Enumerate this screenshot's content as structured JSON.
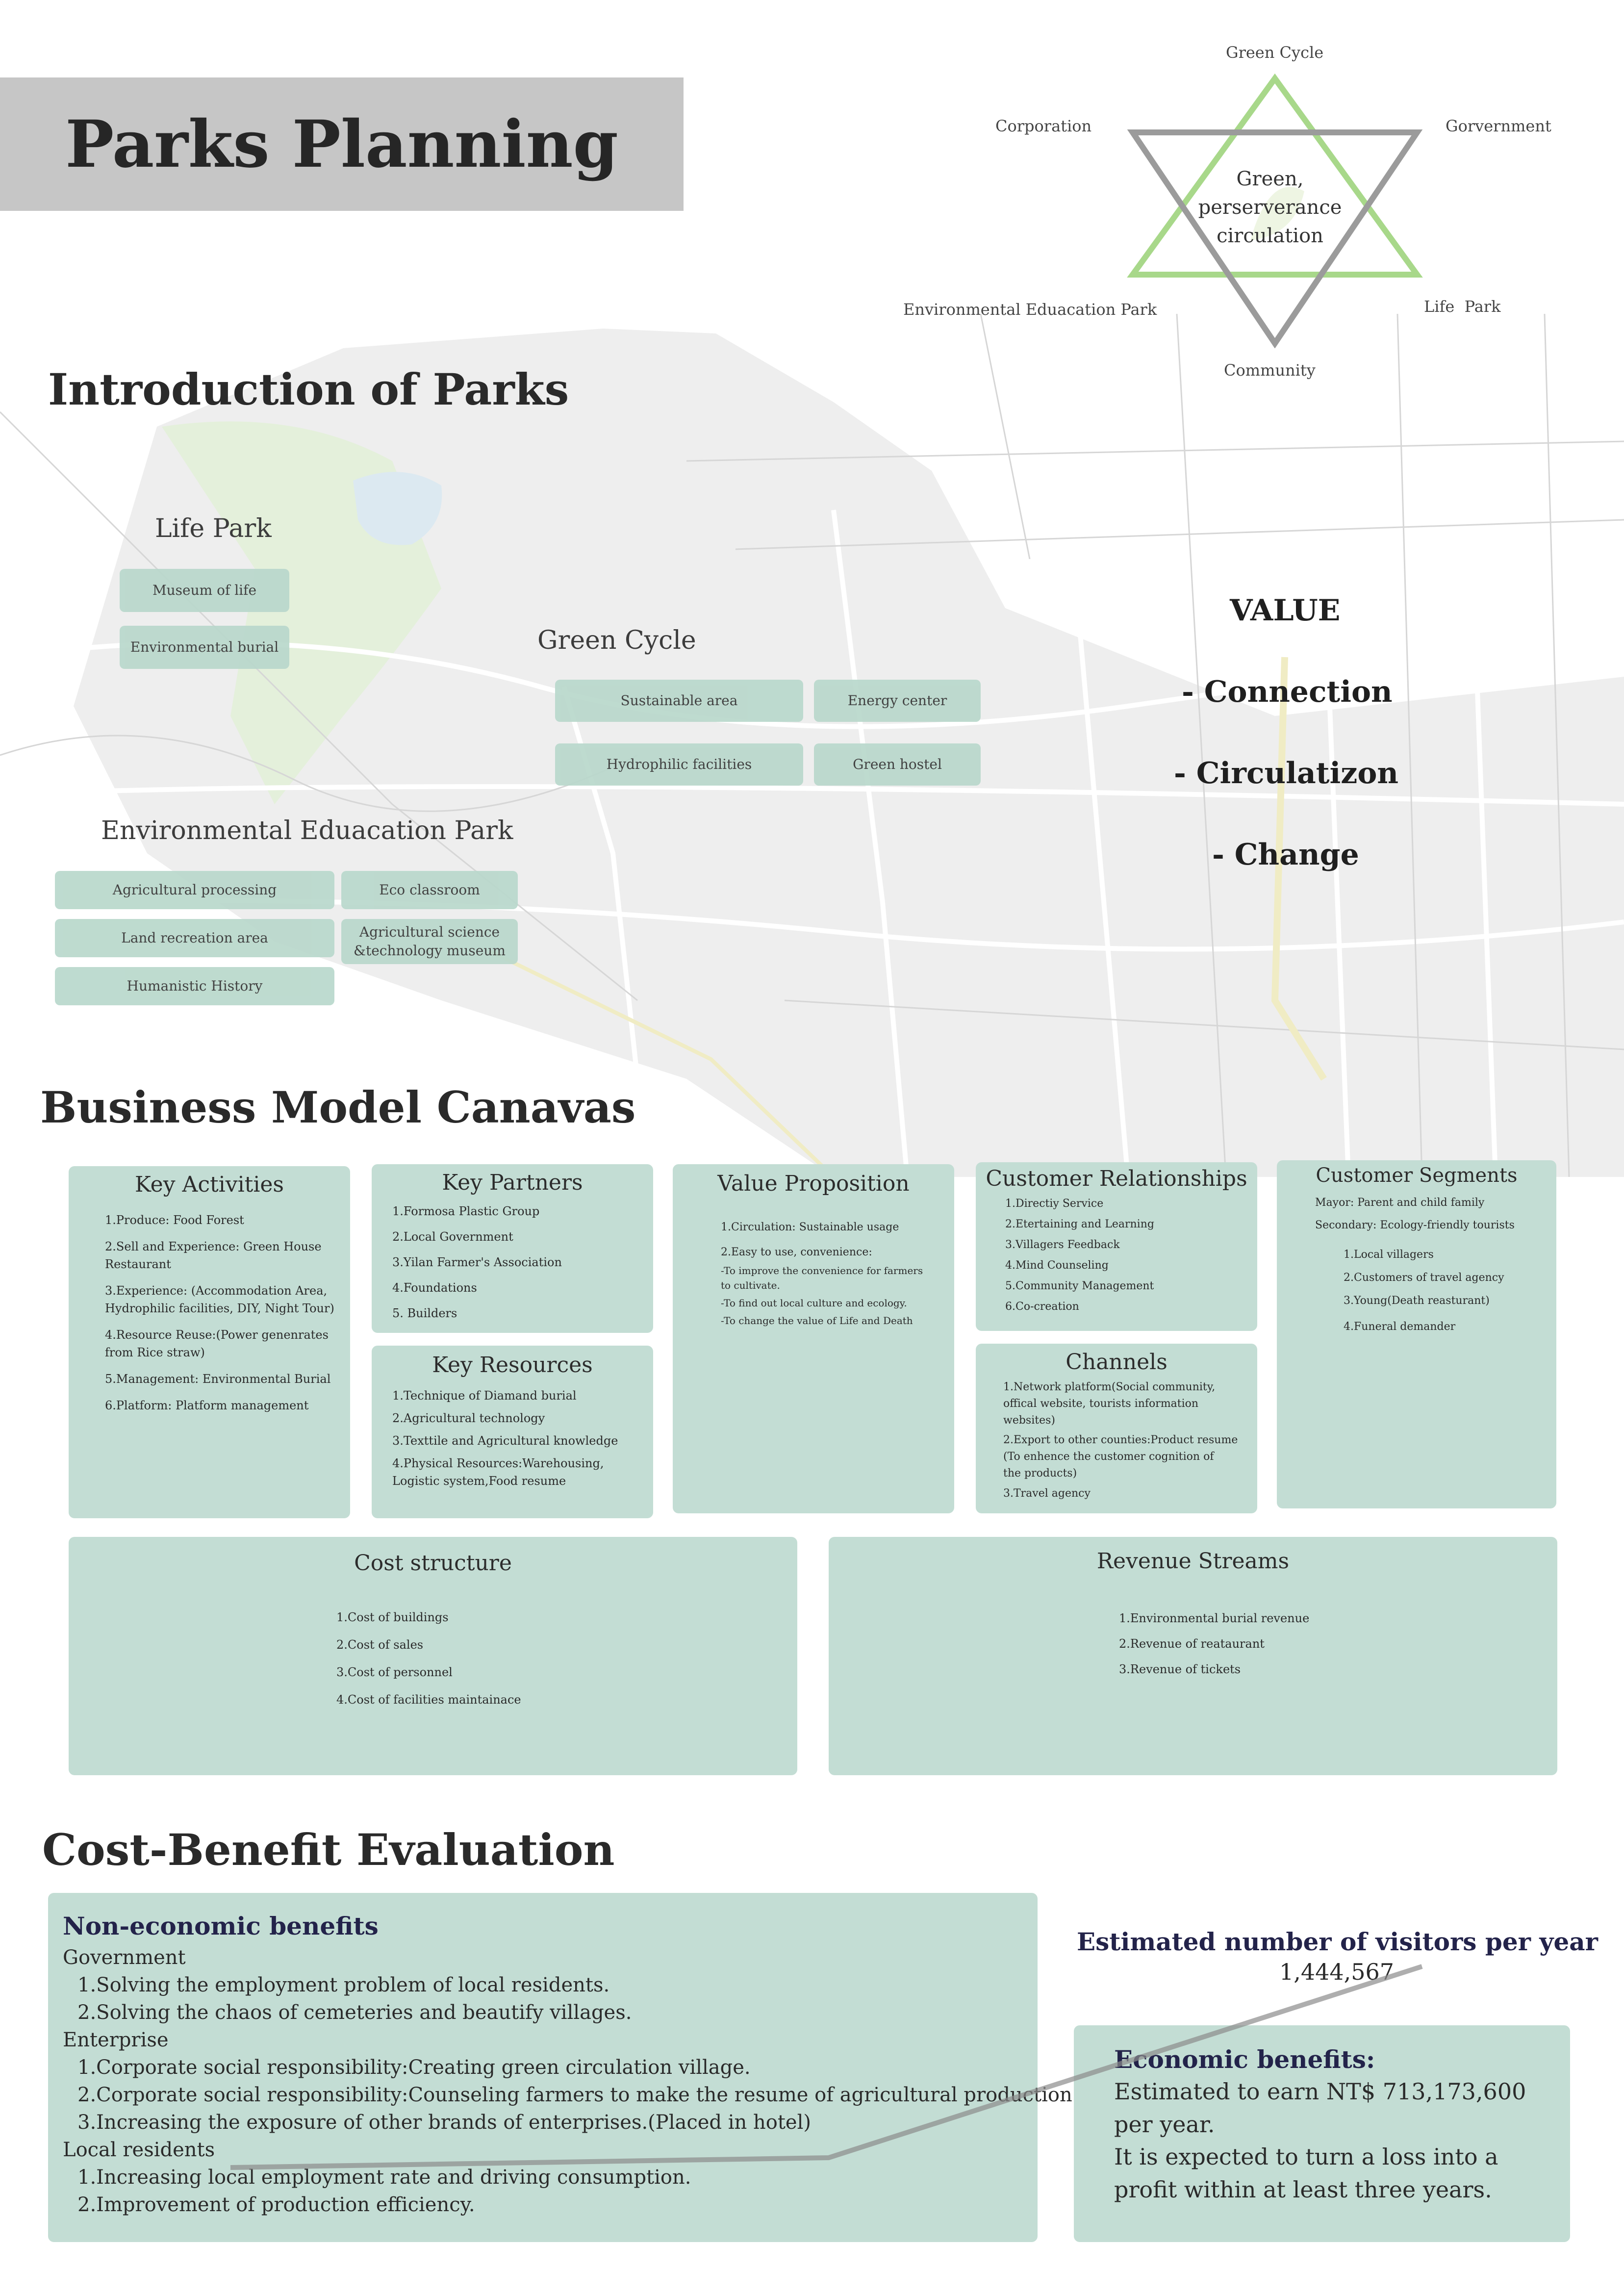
{
  "header": {
    "title": "Parks Planning"
  },
  "diagram": {
    "top": "Green Cycle",
    "left": "Corporation",
    "right": "Gorvernment",
    "bottom_left": "Environmental Eduacation Park",
    "bottom_right": "Life  Park",
    "bottom": "Community",
    "center_lines": [
      "Green,",
      "perserverance",
      "circulation"
    ],
    "green": "#a8d88a",
    "gray": "#9b9b9b"
  },
  "intro": {
    "heading": "Introduction of Parks",
    "life_park": {
      "name": "Life Park",
      "items": [
        "Museum of life",
        "Environmental burial"
      ]
    },
    "green_cycle": {
      "name": "Green Cycle",
      "items": [
        "Sustainable area",
        "Energy center",
        "Hydrophilic facilities",
        "Green hostel"
      ]
    },
    "env_park": {
      "name": "Environmental Eduacation Park",
      "items": [
        "Agricultural processing",
        "Eco classroom",
        "Land recreation area",
        "Agricultural science\n&technology museum",
        "Humanistic History"
      ]
    },
    "value": {
      "title": "VALUE",
      "lines": [
        "- Connection",
        "- Circulatizon",
        "- Change"
      ]
    }
  },
  "bmc": {
    "heading": "Business Model Canavas",
    "key_activities": {
      "title": "Key Activities",
      "items": [
        "1.Produce: Food Forest",
        "2.Sell and Experience: Green House\n   Restaurant",
        "3.Experience: (Accommodation Area,\n   Hydrophilic facilities, DIY, Night Tour)",
        "4.Resource Reuse:(Power genenrates\n   from Rice straw)",
        "5.Management: Environmental Burial",
        "6.Platform: Platform management"
      ]
    },
    "key_partners": {
      "title": "Key Partners",
      "items": [
        "1.Formosa Plastic Group",
        "2.Local Government",
        "3.Yilan Farmer's Association",
        "4.Foundations",
        "5. Builders"
      ]
    },
    "key_resources": {
      "title": "Key Resources",
      "items": [
        "1.Technique of Diamand burial",
        "2.Agricultural technology",
        "3.Texttile and Agricultural knowledge",
        "4.Physical Resources:Warehousing,\n   Logistic system,Food resume"
      ]
    },
    "value_proposition": {
      "title": "Value Proposition",
      "items": [
        "1.Circulation: Sustainable usage",
        "2.Easy to use, convenience:",
        "-To improve the convenience for farmers\n  to cultivate.",
        "-To find out local culture and ecology.",
        "-To change the value of Life and Death"
      ]
    },
    "customer_relationships": {
      "title": "Customer Relationships",
      "items": [
        "1.Directiy Service",
        "2.Etertaining and Learning",
        "3.Villagers Feedback",
        "4.Mind Counseling",
        "5.Community Management",
        "6.Co-creation"
      ]
    },
    "channels": {
      "title": "Channels",
      "items": [
        "1.Network platform(Social community,\n   offical website, tourists information\n   websites)",
        "2.Export to other counties:Product resume\n  (To enhence the customer cognition of\n   the products)",
        "3.Travel agency"
      ]
    },
    "customer_segments": {
      "title": "Customer Segments",
      "primary": "Mayor: Parent and child family",
      "secondary": "Secondary: Ecology-friendly tourists",
      "items": [
        "1.Local villagers",
        "2.Customers of travel agency",
        "3.Young(Death reasturant)",
        "4.Funeral demander"
      ]
    },
    "cost_structure": {
      "title": "Cost structure",
      "items": [
        "1.Cost of buildings",
        "2.Cost of sales",
        "3.Cost of personnel",
        "4.Cost of facilities maintainace"
      ]
    },
    "revenue_streams": {
      "title": "Revenue Streams",
      "items": [
        "1.Environmental burial revenue",
        "2.Revenue of reataurant",
        "3.Revenue of tickets"
      ]
    }
  },
  "cost_benefit": {
    "heading": "Cost-Benefit Evaluation",
    "non_economic": {
      "title": "Non-economic benefits",
      "groups": [
        {
          "label": "Government",
          "items": [
            "1.Solving the employment problem of local residents.",
            "2.Solving the chaos of cemeteries and beautify villages."
          ]
        },
        {
          "label": "Enterprise",
          "items": [
            "1.Corporate social responsibility:Creating green circulation village.",
            "2.Corporate social responsibility:Counseling farmers to make the resume of agricultural production.",
            "3.Increasing the exposure of other brands of enterprises.(Placed in hotel)"
          ]
        },
        {
          "label": "Local residents",
          "items": [
            "1.Increasing local employment rate and driving consumption.",
            "2.Improvement of production efficiency."
          ]
        }
      ]
    },
    "visitors": {
      "label": "Estimated number of visitors per year",
      "value": "1,444,567"
    },
    "economic": {
      "title": "Economic benefits:",
      "lines": [
        "Estimated to earn NT$ 713,173,600",
        "per year.",
        "It is expected to turn a loss into a",
        "profit within at least three years."
      ]
    }
  }
}
